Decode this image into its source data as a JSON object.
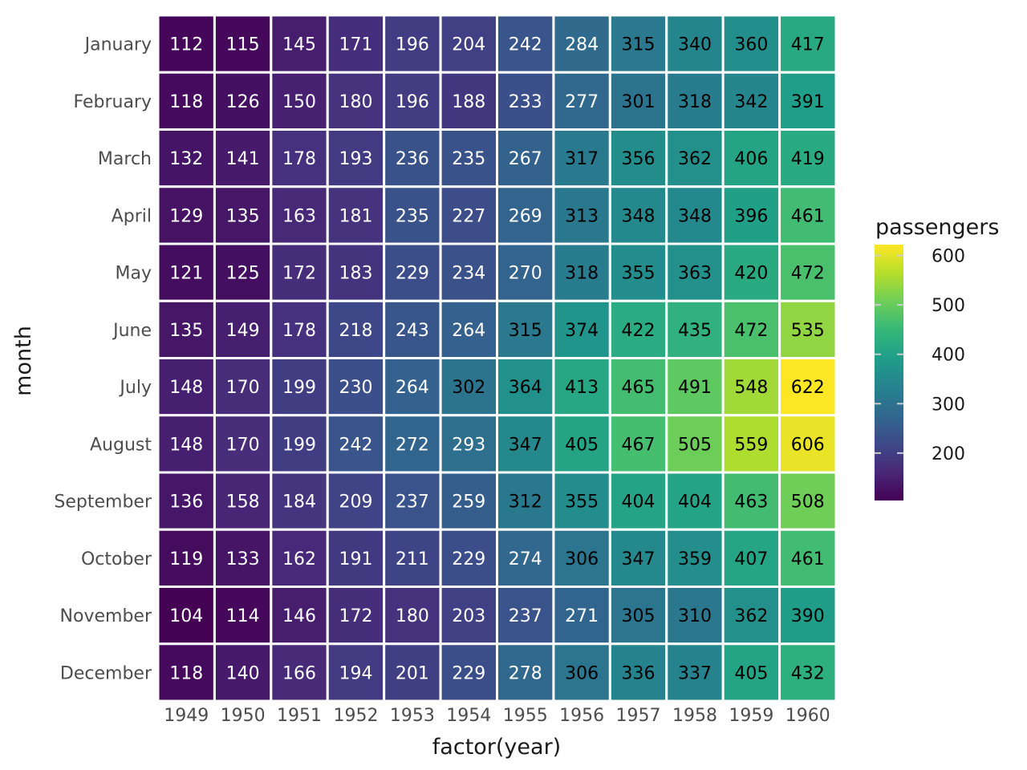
{
  "chart_data": {
    "type": "heatmap",
    "xlabel": "factor(year)",
    "ylabel": "month",
    "x": [
      "1949",
      "1950",
      "1951",
      "1952",
      "1953",
      "1954",
      "1955",
      "1956",
      "1957",
      "1958",
      "1959",
      "1960"
    ],
    "y": [
      "January",
      "February",
      "March",
      "April",
      "May",
      "June",
      "July",
      "August",
      "September",
      "October",
      "November",
      "December"
    ],
    "values": [
      [
        112,
        115,
        145,
        171,
        196,
        204,
        242,
        284,
        315,
        340,
        360,
        417
      ],
      [
        118,
        126,
        150,
        180,
        196,
        188,
        233,
        277,
        301,
        318,
        342,
        391
      ],
      [
        132,
        141,
        178,
        193,
        236,
        235,
        267,
        317,
        356,
        362,
        406,
        419
      ],
      [
        129,
        135,
        163,
        181,
        235,
        227,
        269,
        313,
        348,
        348,
        396,
        461
      ],
      [
        121,
        125,
        172,
        183,
        229,
        234,
        270,
        318,
        355,
        363,
        420,
        472
      ],
      [
        135,
        149,
        178,
        218,
        243,
        264,
        315,
        374,
        422,
        435,
        472,
        535
      ],
      [
        148,
        170,
        199,
        230,
        264,
        302,
        364,
        413,
        465,
        491,
        548,
        622
      ],
      [
        148,
        170,
        199,
        242,
        272,
        293,
        347,
        405,
        467,
        505,
        559,
        606
      ],
      [
        136,
        158,
        184,
        209,
        237,
        259,
        312,
        355,
        404,
        404,
        463,
        508
      ],
      [
        119,
        133,
        162,
        191,
        211,
        229,
        274,
        306,
        347,
        359,
        407,
        461
      ],
      [
        104,
        114,
        146,
        172,
        180,
        203,
        237,
        271,
        305,
        310,
        362,
        390
      ],
      [
        118,
        140,
        166,
        194,
        201,
        229,
        278,
        306,
        336,
        337,
        405,
        432
      ]
    ],
    "colorbar": {
      "title": "passengers",
      "ticks": [
        200,
        300,
        400,
        500,
        600
      ],
      "range": [
        104,
        622
      ],
      "colormap": "viridis"
    },
    "cell_label_threshold": 300,
    "label_colors": {
      "dark_cell": "#ffffff",
      "light_cell": "#000000"
    },
    "grid": false,
    "legend_position": "right"
  }
}
